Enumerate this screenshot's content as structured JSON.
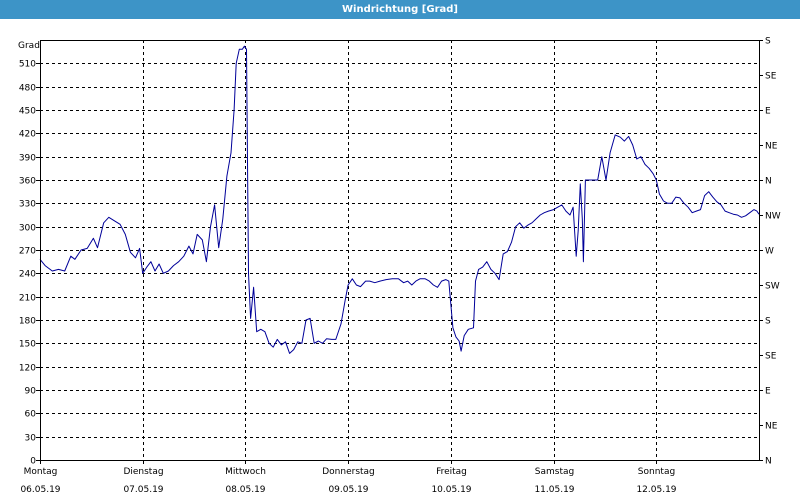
{
  "chart_data": {
    "type": "line",
    "title": "Windrichtung [Grad]",
    "ylabel": "Grad",
    "ylim": [
      0,
      540
    ],
    "yticks": [
      0,
      30,
      60,
      90,
      120,
      150,
      180,
      210,
      240,
      270,
      300,
      330,
      360,
      390,
      420,
      450,
      480,
      510
    ],
    "right_ticks": [
      {
        "v": 0,
        "label": "N"
      },
      {
        "v": 45,
        "label": "NE"
      },
      {
        "v": 90,
        "label": "E"
      },
      {
        "v": 135,
        "label": "SE"
      },
      {
        "v": 180,
        "label": "S"
      },
      {
        "v": 225,
        "label": "SW"
      },
      {
        "v": 270,
        "label": "W"
      },
      {
        "v": 315,
        "label": "NW"
      },
      {
        "v": 360,
        "label": "N"
      },
      {
        "v": 405,
        "label": "NE"
      },
      {
        "v": 450,
        "label": "E"
      },
      {
        "v": 495,
        "label": "SE"
      },
      {
        "v": 540,
        "label": "S"
      }
    ],
    "xlim": [
      0,
      7
    ],
    "x_ticks": [
      {
        "x": 0,
        "day": "Montag",
        "date": "06.05.19"
      },
      {
        "x": 1,
        "day": "Dienstag",
        "date": "07.05.19"
      },
      {
        "x": 2,
        "day": "Mittwoch",
        "date": "08.05.19"
      },
      {
        "x": 3,
        "day": "Donnerstag",
        "date": "09.05.19"
      },
      {
        "x": 4,
        "day": "Freitag",
        "date": "10.05.19"
      },
      {
        "x": 5,
        "day": "Samstag",
        "date": "11.05.19"
      },
      {
        "x": 6,
        "day": "Sonntag",
        "date": "12.05.19"
      }
    ],
    "grid": true,
    "line_color": "#000099",
    "points": [
      [
        0.0,
        258
      ],
      [
        0.05,
        250
      ],
      [
        0.12,
        243
      ],
      [
        0.18,
        245
      ],
      [
        0.24,
        243
      ],
      [
        0.3,
        262
      ],
      [
        0.34,
        258
      ],
      [
        0.4,
        270
      ],
      [
        0.46,
        272
      ],
      [
        0.52,
        285
      ],
      [
        0.56,
        273
      ],
      [
        0.62,
        305
      ],
      [
        0.67,
        312
      ],
      [
        0.73,
        307
      ],
      [
        0.78,
        303
      ],
      [
        0.83,
        290
      ],
      [
        0.88,
        267
      ],
      [
        0.93,
        260
      ],
      [
        0.97,
        272
      ],
      [
        1.0,
        240
      ],
      [
        1.04,
        248
      ],
      [
        1.08,
        255
      ],
      [
        1.12,
        243
      ],
      [
        1.16,
        252
      ],
      [
        1.2,
        240
      ],
      [
        1.25,
        243
      ],
      [
        1.3,
        250
      ],
      [
        1.35,
        255
      ],
      [
        1.4,
        262
      ],
      [
        1.45,
        275
      ],
      [
        1.49,
        265
      ],
      [
        1.53,
        290
      ],
      [
        1.58,
        283
      ],
      [
        1.62,
        255
      ],
      [
        1.66,
        300
      ],
      [
        1.7,
        328
      ],
      [
        1.74,
        273
      ],
      [
        1.78,
        310
      ],
      [
        1.82,
        365
      ],
      [
        1.86,
        395
      ],
      [
        1.89,
        450
      ],
      [
        1.91,
        510
      ],
      [
        1.94,
        528
      ],
      [
        1.97,
        528
      ],
      [
        1.99,
        532
      ],
      [
        2.01,
        528
      ],
      [
        2.03,
        240
      ],
      [
        2.05,
        182
      ],
      [
        2.08,
        222
      ],
      [
        2.11,
        165
      ],
      [
        2.15,
        168
      ],
      [
        2.19,
        165
      ],
      [
        2.23,
        150
      ],
      [
        2.27,
        145
      ],
      [
        2.31,
        155
      ],
      [
        2.35,
        148
      ],
      [
        2.39,
        152
      ],
      [
        2.43,
        137
      ],
      [
        2.47,
        142
      ],
      [
        2.51,
        152
      ],
      [
        2.55,
        150
      ],
      [
        2.59,
        180
      ],
      [
        2.63,
        182
      ],
      [
        2.67,
        150
      ],
      [
        2.71,
        153
      ],
      [
        2.75,
        150
      ],
      [
        2.79,
        156
      ],
      [
        2.84,
        155
      ],
      [
        2.88,
        155
      ],
      [
        2.93,
        175
      ],
      [
        2.97,
        205
      ],
      [
        3.0,
        225
      ],
      [
        3.04,
        233
      ],
      [
        3.08,
        225
      ],
      [
        3.12,
        223
      ],
      [
        3.17,
        230
      ],
      [
        3.21,
        230
      ],
      [
        3.26,
        228
      ],
      [
        3.31,
        230
      ],
      [
        3.37,
        232
      ],
      [
        3.43,
        233
      ],
      [
        3.49,
        233
      ],
      [
        3.54,
        228
      ],
      [
        3.58,
        230
      ],
      [
        3.62,
        225
      ],
      [
        3.66,
        230
      ],
      [
        3.7,
        233
      ],
      [
        3.75,
        233
      ],
      [
        3.79,
        230
      ],
      [
        3.83,
        225
      ],
      [
        3.87,
        222
      ],
      [
        3.91,
        230
      ],
      [
        3.95,
        232
      ],
      [
        3.98,
        230
      ],
      [
        4.02,
        170
      ],
      [
        4.05,
        158
      ],
      [
        4.08,
        153
      ],
      [
        4.1,
        140
      ],
      [
        4.13,
        160
      ],
      [
        4.17,
        168
      ],
      [
        4.22,
        170
      ],
      [
        4.24,
        230
      ],
      [
        4.27,
        245
      ],
      [
        4.31,
        248
      ],
      [
        4.35,
        255
      ],
      [
        4.39,
        245
      ],
      [
        4.43,
        240
      ],
      [
        4.47,
        232
      ],
      [
        4.51,
        265
      ],
      [
        4.55,
        268
      ],
      [
        4.59,
        280
      ],
      [
        4.63,
        300
      ],
      [
        4.67,
        305
      ],
      [
        4.71,
        298
      ],
      [
        4.75,
        302
      ],
      [
        4.79,
        305
      ],
      [
        4.83,
        310
      ],
      [
        4.87,
        315
      ],
      [
        4.91,
        318
      ],
      [
        4.95,
        320
      ],
      [
        5.0,
        322
      ],
      [
        5.04,
        325
      ],
      [
        5.08,
        328
      ],
      [
        5.12,
        320
      ],
      [
        5.16,
        315
      ],
      [
        5.19,
        325
      ],
      [
        5.22,
        262
      ],
      [
        5.24,
        295
      ],
      [
        5.26,
        355
      ],
      [
        5.28,
        310
      ],
      [
        5.29,
        255
      ],
      [
        5.31,
        360
      ],
      [
        5.35,
        360
      ],
      [
        5.39,
        360
      ],
      [
        5.43,
        360
      ],
      [
        5.47,
        390
      ],
      [
        5.51,
        360
      ],
      [
        5.55,
        395
      ],
      [
        5.6,
        418
      ],
      [
        5.65,
        415
      ],
      [
        5.69,
        410
      ],
      [
        5.73,
        416
      ],
      [
        5.77,
        405
      ],
      [
        5.81,
        387
      ],
      [
        5.85,
        390
      ],
      [
        5.89,
        380
      ],
      [
        5.93,
        375
      ],
      [
        5.97,
        368
      ],
      [
        6.0,
        360
      ],
      [
        6.03,
        342
      ],
      [
        6.07,
        333
      ],
      [
        6.11,
        330
      ],
      [
        6.15,
        330
      ],
      [
        6.19,
        338
      ],
      [
        6.23,
        337
      ],
      [
        6.27,
        330
      ],
      [
        6.31,
        325
      ],
      [
        6.35,
        318
      ],
      [
        6.39,
        320
      ],
      [
        6.43,
        322
      ],
      [
        6.47,
        340
      ],
      [
        6.51,
        345
      ],
      [
        6.55,
        338
      ],
      [
        6.59,
        332
      ],
      [
        6.63,
        328
      ],
      [
        6.67,
        320
      ],
      [
        6.71,
        318
      ],
      [
        6.75,
        316
      ],
      [
        6.79,
        315
      ],
      [
        6.83,
        312
      ],
      [
        6.87,
        314
      ],
      [
        6.91,
        318
      ],
      [
        6.95,
        322
      ],
      [
        6.98,
        320
      ],
      [
        7.0,
        316
      ]
    ]
  }
}
